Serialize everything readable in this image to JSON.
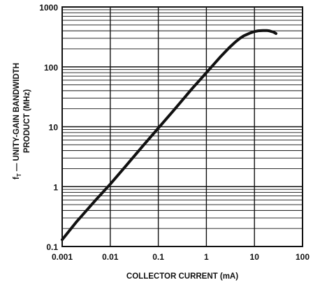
{
  "chart_data": {
    "type": "line",
    "title": "",
    "xlabel": "COLLECTOR CURRENT (mA)",
    "ylabel": {
      "symbol": "f",
      "subscript": "T",
      "line1_rest": " — UNITY-GAIN BANDWIDTH",
      "line2": "PRODUCT (MHz)"
    },
    "x_scale": "log",
    "y_scale": "log",
    "xlim": [
      0.001,
      100
    ],
    "ylim": [
      0.1,
      1000
    ],
    "x_ticks": [
      "0.001",
      "0.01",
      "0.1",
      "1",
      "10",
      "100"
    ],
    "y_ticks": [
      "0.1",
      "1",
      "10",
      "100",
      "1000"
    ],
    "grid": true,
    "legend": "none",
    "line_color": "#111111",
    "series": [
      {
        "x": [
          0.001,
          0.002,
          0.005,
          0.01,
          0.02,
          0.05,
          0.1,
          0.2,
          0.5,
          1,
          2,
          3,
          4,
          5,
          6,
          8,
          10,
          12,
          15,
          18,
          20,
          25,
          28
        ],
        "y": [
          0.13,
          0.26,
          0.6,
          1.1,
          2.1,
          5.0,
          9.5,
          18,
          43,
          80,
          150,
          210,
          260,
          300,
          330,
          365,
          390,
          400,
          405,
          405,
          400,
          380,
          360
        ]
      }
    ]
  }
}
